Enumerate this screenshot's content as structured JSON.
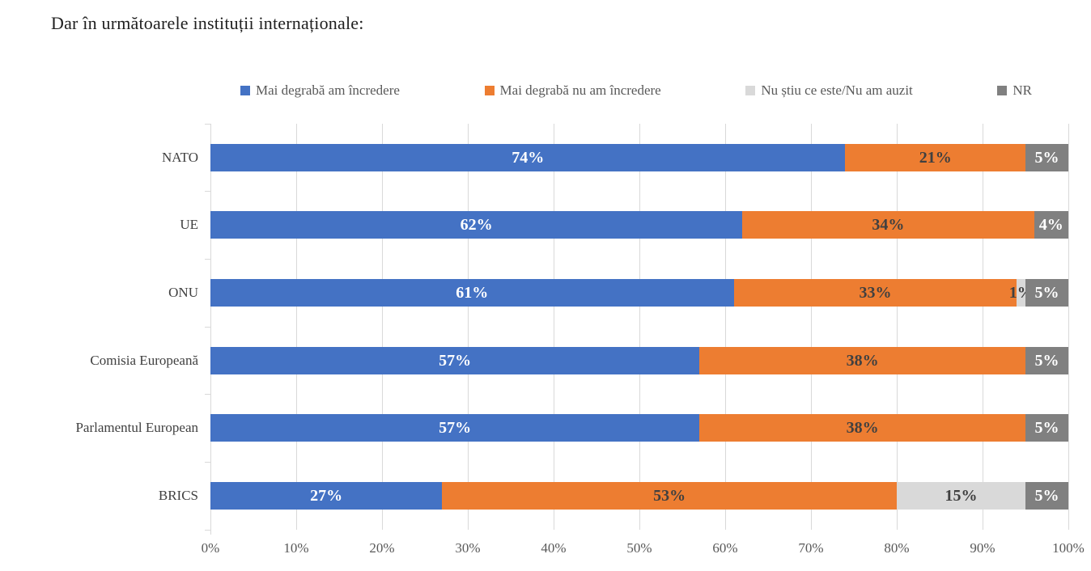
{
  "title": "Dar în următoarele instituții internaționale:",
  "chart_data": {
    "type": "bar",
    "orientation": "horizontal",
    "stacked": true,
    "title": "Dar în următoarele instituții internaționale:",
    "legend_position": "top",
    "grid": true,
    "xlim": [
      0,
      100
    ],
    "value_suffix": "%",
    "x_ticks": [
      "0%",
      "10%",
      "20%",
      "30%",
      "40%",
      "50%",
      "60%",
      "70%",
      "80%",
      "90%",
      "100%"
    ],
    "categories": [
      "NATO",
      "UE",
      "ONU",
      "Comisia Europeană",
      "Parlamentul European",
      "BRICS"
    ],
    "series": [
      {
        "name": "Mai degrabă am încredere",
        "color": "#4472C4",
        "label_color": "#FFFFFF",
        "values": [
          74,
          62,
          61,
          57,
          57,
          27
        ]
      },
      {
        "name": "Mai degrabă nu am încredere",
        "color": "#ED7D31",
        "label_color": "#404040",
        "values": [
          21,
          34,
          33,
          38,
          38,
          53
        ]
      },
      {
        "name": "Nu știu ce este/Nu am auzit",
        "color": "#D9D9D9",
        "label_color": "#404040",
        "values": [
          0,
          0,
          1,
          0,
          0,
          15
        ]
      },
      {
        "name": "NR",
        "color": "#808080",
        "label_color": "#FFFFFF",
        "values": [
          5,
          4,
          5,
          5,
          5,
          5
        ]
      }
    ],
    "colors": {
      "gridline": "#d9d9d9",
      "axis_text": "#595959",
      "category_text": "#404040",
      "title_text": "#1f1f1f"
    }
  }
}
